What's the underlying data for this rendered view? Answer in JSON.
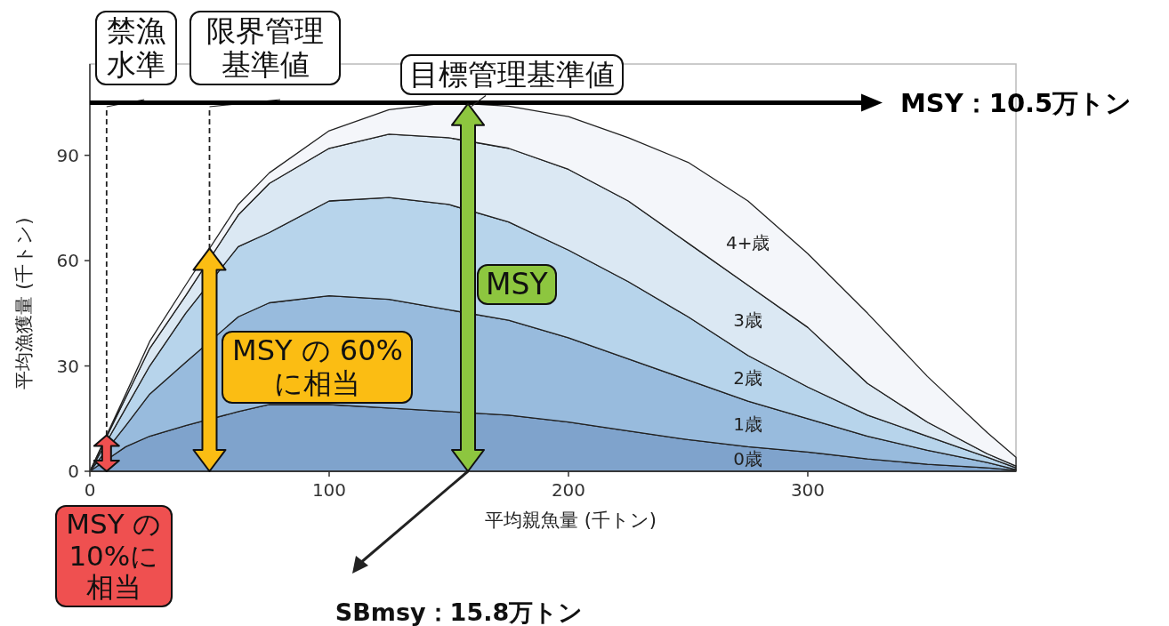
{
  "chart_data": {
    "type": "area",
    "stacked": true,
    "xlabel": "平均親魚量 (千トン)",
    "ylabel": "平均漁獲量 (千トン)",
    "x": [
      0,
      15,
      25,
      40,
      62,
      75,
      100,
      125,
      150,
      175,
      200,
      225,
      250,
      275,
      300,
      325,
      350,
      375,
      387
    ],
    "series": [
      {
        "name": "0歳",
        "color": "#7fa3cc",
        "values": [
          0,
          7,
          10,
          13,
          17,
          19,
          19,
          18,
          17,
          16,
          14,
          11.5,
          9,
          7,
          5.5,
          3.5,
          2,
          1,
          0.3
        ]
      },
      {
        "name": "1歳",
        "color": "#98bbdd",
        "values": [
          0,
          6,
          12,
          18,
          27,
          29,
          31,
          31,
          29,
          27,
          24,
          20.5,
          17,
          13,
          9.5,
          6.5,
          4,
          1.5,
          0.2
        ]
      },
      {
        "name": "2歳",
        "color": "#b7d4eb",
        "values": [
          0,
          5,
          8,
          14,
          20,
          20,
          27,
          29,
          30,
          28,
          25,
          22,
          18,
          13,
          9,
          6,
          4,
          1.5,
          0.5
        ]
      },
      {
        "name": "3歳",
        "color": "#dbe8f3",
        "values": [
          0,
          3,
          5,
          5,
          9,
          14,
          15,
          18,
          19,
          21,
          23,
          23,
          21,
          20,
          17,
          9,
          4,
          1,
          0.5
        ]
      },
      {
        "name": "4+歳",
        "color": "#f4f6fa",
        "values": [
          0,
          1,
          2,
          3,
          3,
          3,
          5,
          7,
          10,
          12,
          15,
          18,
          23,
          24,
          21,
          20,
          13,
          6,
          2.5
        ]
      }
    ],
    "xlim": [
      0,
      387
    ],
    "ylim": [
      0,
      116
    ],
    "xticks": [
      0,
      100,
      200,
      300
    ],
    "yticks": [
      0,
      30,
      60,
      90
    ],
    "ref_lines": [
      {
        "axis": "x",
        "value": 7,
        "label": "禁漁水準",
        "line_style": "dashed"
      },
      {
        "axis": "x",
        "value": 50,
        "label": "限界管理基準値",
        "line_style": "dashed"
      },
      {
        "axis": "y",
        "value": 105,
        "label": "MSY：10.5万トン",
        "color": "#000000",
        "line_style": "solid"
      }
    ],
    "annotations": [
      {
        "text": "目標管理基準値",
        "x": 158,
        "y": 105
      },
      "MSY",
      "MSY の 60%に相当",
      "MSY の 10%に相当",
      "SBmsy：15.8万トン"
    ]
  }
}
